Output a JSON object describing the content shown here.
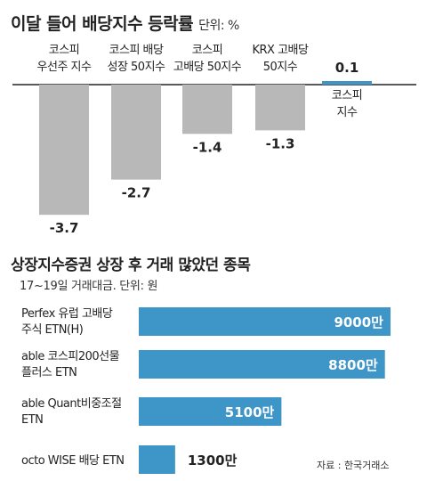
{
  "title": "이달 들어 배당지수 등락률",
  "unit": "단위: %",
  "colors": {
    "gray": "#b8b8b8",
    "blue": "#3d95c8",
    "axis": "#222222",
    "text": "#222222"
  },
  "chart_data": [
    {
      "type": "bar",
      "title": "이달 들어 배당지수 등락률",
      "ylabel": "단위: %",
      "categories": [
        [
          "코스피",
          "우선주 지수"
        ],
        [
          "코스피 배당",
          "성장 50지수"
        ],
        [
          "코스피",
          "고배당 50지수"
        ],
        [
          "KRX 고배당",
          "50지수"
        ],
        [
          "코스피",
          "지수"
        ]
      ],
      "values": [
        -3.7,
        -2.7,
        -1.4,
        -1.3,
        0.1
      ],
      "value_labels": [
        "-3.7",
        "-2.7",
        "-1.4",
        "-1.3",
        "0.1"
      ],
      "highlight_index": 4,
      "ylim": [
        -3.7,
        0.1
      ],
      "grid": false
    },
    {
      "type": "bar",
      "orientation": "horizontal",
      "title": "상장지수증권 상장 후 거래 많았던 종목",
      "subtitle": "17~19일 거래대금. 단위: 원",
      "categories": [
        [
          "Perfex 유럽 고배당",
          "주식 ETN(H)"
        ],
        [
          "able 코스피200선물",
          "플러스 ETN"
        ],
        [
          "able Quant비중조절",
          "ETN"
        ],
        [
          "octo WISE 배당 ETN"
        ]
      ],
      "values": [
        90000000,
        88000000,
        51000000,
        13000000
      ],
      "value_labels": [
        "9000만",
        "8800만",
        "5100만",
        "1300만"
      ],
      "xlim": [
        0,
        90000000
      ]
    }
  ],
  "chart2_title": "상장지수증권 상장 후 거래 많았던 종목",
  "chart2_subtitle": "17~19일 거래대금. 단위: 원",
  "source": "자료 : 한국거래소"
}
